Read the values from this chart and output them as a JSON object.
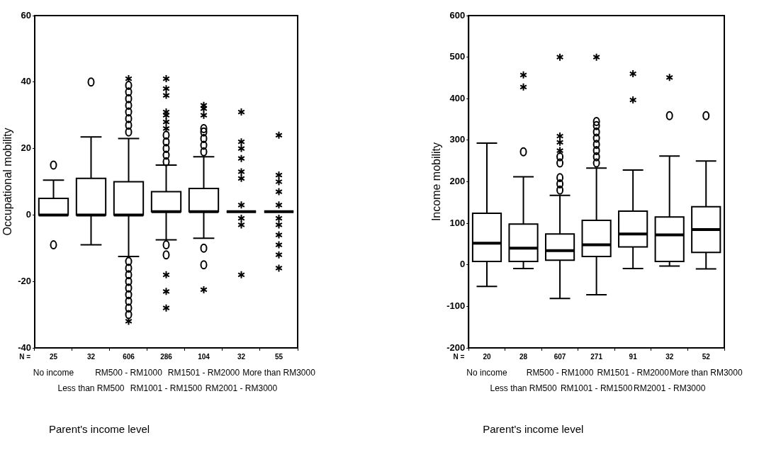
{
  "chart_data": [
    {
      "type": "box",
      "xlabel": "Parent's income level",
      "ylabel": "Occupational mobility",
      "ylim": [
        -40,
        60
      ],
      "yticks": [
        -40,
        -20,
        0,
        20,
        40,
        60
      ],
      "grid": false,
      "categories": [
        "No income",
        "Less than RM500",
        "RM500 - RM1000",
        "RM1001 - RM1500",
        "RM1501 - RM2000",
        "RM2001 - RM3000",
        "More than RM3000"
      ],
      "boxes": [
        {
          "low": 0,
          "q1": 0,
          "median": 0,
          "q3": 5,
          "high": 10.5,
          "outliers": [
            15,
            -9
          ]
        },
        {
          "low": -9,
          "q1": 0,
          "median": 0,
          "q3": 11,
          "high": 23.5,
          "outliers": [
            40
          ]
        },
        {
          "low": -12.5,
          "q1": 0,
          "median": 0,
          "q3": 10,
          "high": 23,
          "outliers": [
            25,
            27,
            29,
            31,
            33,
            35,
            37,
            39,
            41,
            -14,
            -16,
            -18,
            -20,
            -22,
            -24,
            -26,
            -28,
            -30,
            -32
          ]
        },
        {
          "low": -7.5,
          "q1": 1,
          "median": 1,
          "q3": 7,
          "high": 15,
          "outliers": [
            16,
            18,
            20,
            22,
            24,
            26,
            28,
            30,
            31,
            36,
            38,
            41,
            -9,
            -12,
            -18,
            -23,
            -28
          ]
        },
        {
          "low": -7,
          "q1": 1,
          "median": 1,
          "q3": 8,
          "high": 17.5,
          "outliers": [
            19,
            21,
            23,
            25,
            26,
            30,
            32,
            33,
            -10,
            -15,
            -22.5
          ]
        },
        {
          "low": 1,
          "q1": 1,
          "median": 1,
          "q3": 1,
          "high": 1,
          "outliers": [
            31,
            22,
            20,
            17,
            13,
            11,
            3,
            -1,
            -3,
            -18
          ]
        },
        {
          "low": 1,
          "q1": 1,
          "median": 1,
          "q3": 1,
          "high": 1,
          "outliers": [
            24,
            12,
            10,
            7,
            3,
            -1,
            -3,
            -6,
            -9,
            -12,
            -16
          ]
        }
      ],
      "annotations": [
        "N =",
        "25",
        "32",
        "606",
        "286",
        "104",
        "32",
        "55"
      ]
    },
    {
      "type": "box",
      "xlabel": "Parent's income level",
      "ylabel": "Income mobility",
      "ylim": [
        -200,
        600
      ],
      "yticks": [
        -200,
        -100,
        0,
        100,
        200,
        300,
        400,
        500,
        600
      ],
      "grid": false,
      "categories": [
        "No income",
        "Less than RM500",
        "RM500 - RM1000",
        "RM1001 - RM1500",
        "RM1501 - RM2000",
        "RM2001 - RM3000",
        "More than RM3000"
      ],
      "boxes": [
        {
          "low": -52,
          "q1": 8,
          "median": 52,
          "q3": 124,
          "high": 293
        },
        {
          "low": -9,
          "q1": 8,
          "median": 40,
          "q3": 98,
          "high": 212,
          "outliers": [
            272,
            428,
            457
          ]
        },
        {
          "low": -81,
          "q1": 11,
          "median": 34,
          "q3": 74,
          "high": 167,
          "outliers": [
            180,
            195,
            210,
            245,
            260,
            275,
            295,
            310,
            500
          ]
        },
        {
          "low": -72,
          "q1": 20,
          "median": 48,
          "q3": 107,
          "high": 233,
          "outliers": [
            245,
            260,
            275,
            290,
            305,
            320,
            335,
            345,
            500
          ]
        },
        {
          "low": -9,
          "q1": 43,
          "median": 74,
          "q3": 129,
          "high": 228,
          "outliers": [
            397,
            460
          ]
        },
        {
          "low": -3,
          "q1": 8,
          "median": 72,
          "q3": 115,
          "high": 262,
          "outliers": [
            359,
            451
          ]
        },
        {
          "low": -10,
          "q1": 30,
          "median": 85,
          "q3": 140,
          "high": 250,
          "outliers": [
            359
          ]
        }
      ],
      "annotations": [
        "N =",
        "20",
        "28",
        "607",
        "271",
        "91",
        "32",
        "52"
      ]
    }
  ]
}
